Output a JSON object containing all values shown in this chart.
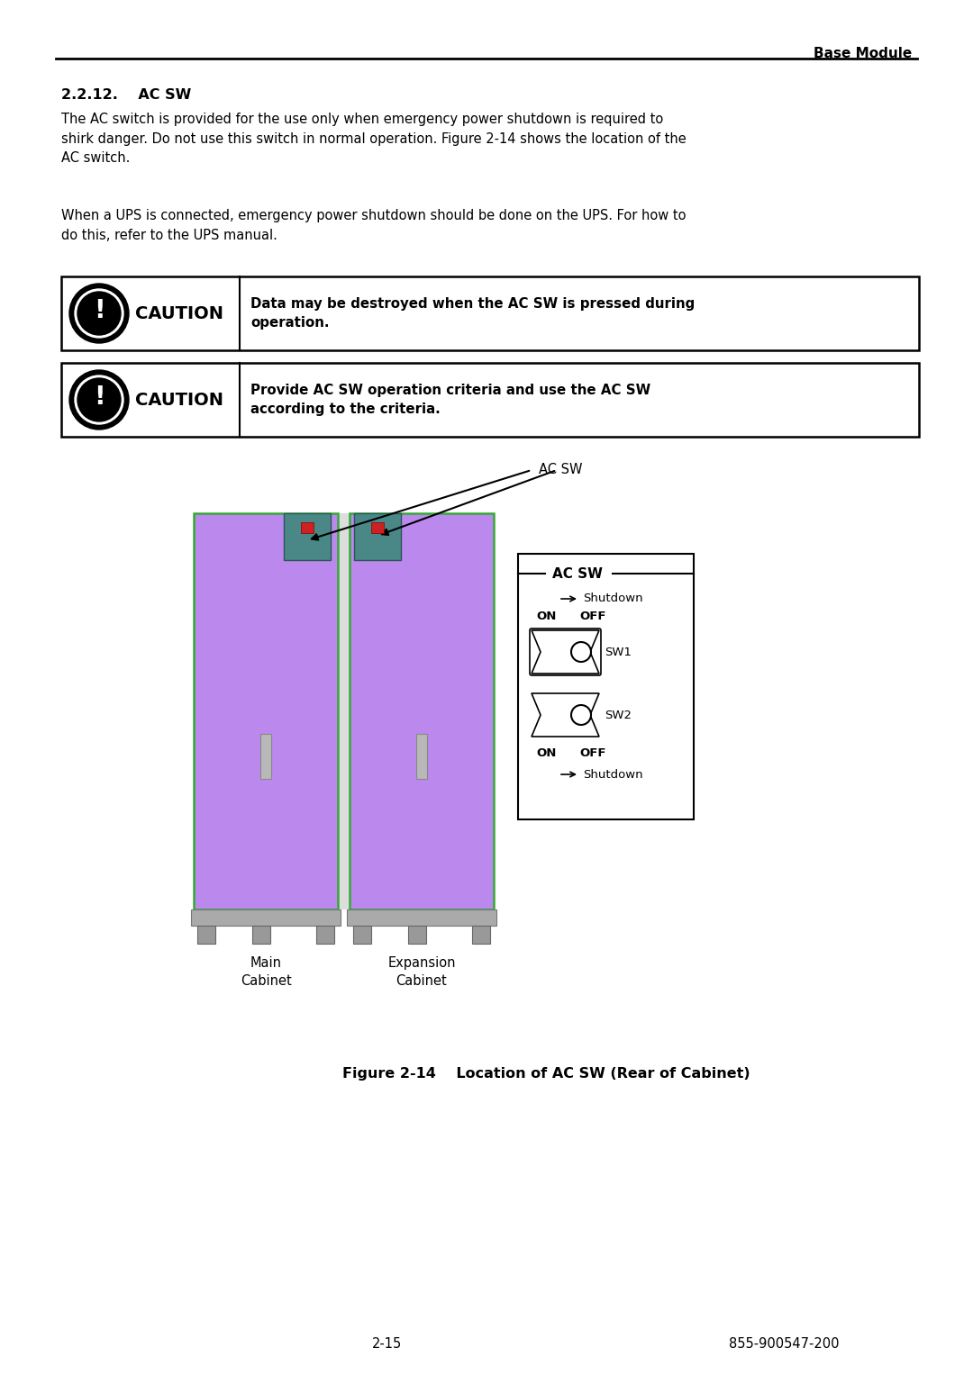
{
  "bg_color": "#ffffff",
  "header_text": "Base Module",
  "footer_left": "2-15",
  "footer_right": "855-900547-200",
  "cabinet_purple": "#bb88ee",
  "cabinet_green": "#4a8888",
  "cabinet_red": "#cc2222",
  "cabinet_green_border": "#2a5555",
  "cabinet_body_border": "#33aa33",
  "fig_caption": "Figure 2-14    Location of AC SW (Rear of Cabinet)"
}
